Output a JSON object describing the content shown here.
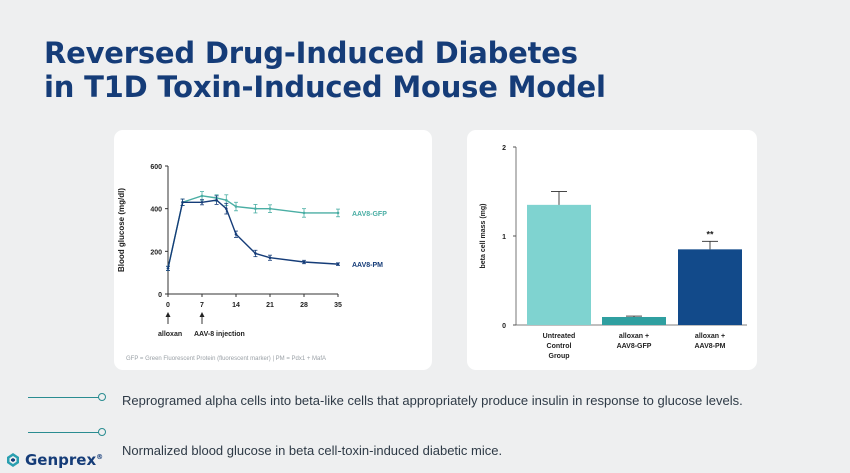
{
  "slide": {
    "title_line1": "Reversed Drug-Induced Diabetes",
    "title_line2": "in T1D Toxin-Induced Mouse Model",
    "footnote": "GFP = Green Fluorescent Protein (fluorescent marker) | PM = Pdx1 + MafA",
    "bullets": [
      "Reprogramed alpha cells into beta-like cells that appropriately produce insulin in response to glucose levels.",
      "Normalized blood glucose in beta cell-toxin-induced diabetic mice."
    ],
    "logo_text": "Genprex",
    "logo_mark": "®"
  },
  "colors": {
    "title": "#153c78",
    "gfp_line": "#4aaea4",
    "pm_line": "#153c78",
    "bar_untreated": "#7fd3d0",
    "bar_gfp": "#2f9fa0",
    "bar_pm": "#124a8a",
    "accent_line": "#2a8c91"
  },
  "chart_data": [
    {
      "type": "line",
      "title": "",
      "xlabel": "",
      "ylabel": "Blood glucose (mg/dl)",
      "xlim": [
        0,
        35
      ],
      "ylim": [
        0,
        600
      ],
      "xticks": [
        0,
        7,
        14,
        21,
        28,
        35
      ],
      "yticks": [
        0,
        200,
        400,
        600
      ],
      "series": [
        {
          "name": "AAV8-GFP",
          "x": [
            0,
            3,
            7,
            10,
            12,
            14,
            18,
            21,
            28,
            35
          ],
          "y": [
            120,
            430,
            460,
            450,
            440,
            410,
            400,
            400,
            380,
            380
          ],
          "err": [
            10,
            15,
            20,
            15,
            25,
            20,
            20,
            18,
            20,
            18
          ]
        },
        {
          "name": "AAV8-PM",
          "x": [
            0,
            3,
            7,
            10,
            12,
            14,
            18,
            21,
            28,
            35
          ],
          "y": [
            120,
            430,
            430,
            440,
            400,
            280,
            190,
            170,
            150,
            140
          ],
          "err": [
            10,
            15,
            12,
            20,
            25,
            15,
            15,
            12,
            8,
            6
          ]
        }
      ],
      "annotations": [
        {
          "x": 0,
          "label": "alloxan"
        },
        {
          "x": 7,
          "label": "AAV-8 injection"
        }
      ]
    },
    {
      "type": "bar",
      "title": "",
      "ylabel": "beta cell mass (mg)",
      "ylim": [
        0,
        2
      ],
      "yticks": [
        0,
        1,
        2
      ],
      "categories": [
        "Untreated Control Group",
        "alloxan + AAV8-GFP",
        "alloxan + AAV8-PM"
      ],
      "category_lines": [
        [
          "Untreated",
          "Control",
          "Group"
        ],
        [
          "alloxan +",
          "AAV8-GFP"
        ],
        [
          "alloxan +",
          "AAV8-PM"
        ]
      ],
      "values": [
        1.35,
        0.09,
        0.85
      ],
      "err": [
        0.15,
        0.01,
        0.09
      ],
      "significance": [
        "",
        "",
        "**"
      ]
    }
  ]
}
